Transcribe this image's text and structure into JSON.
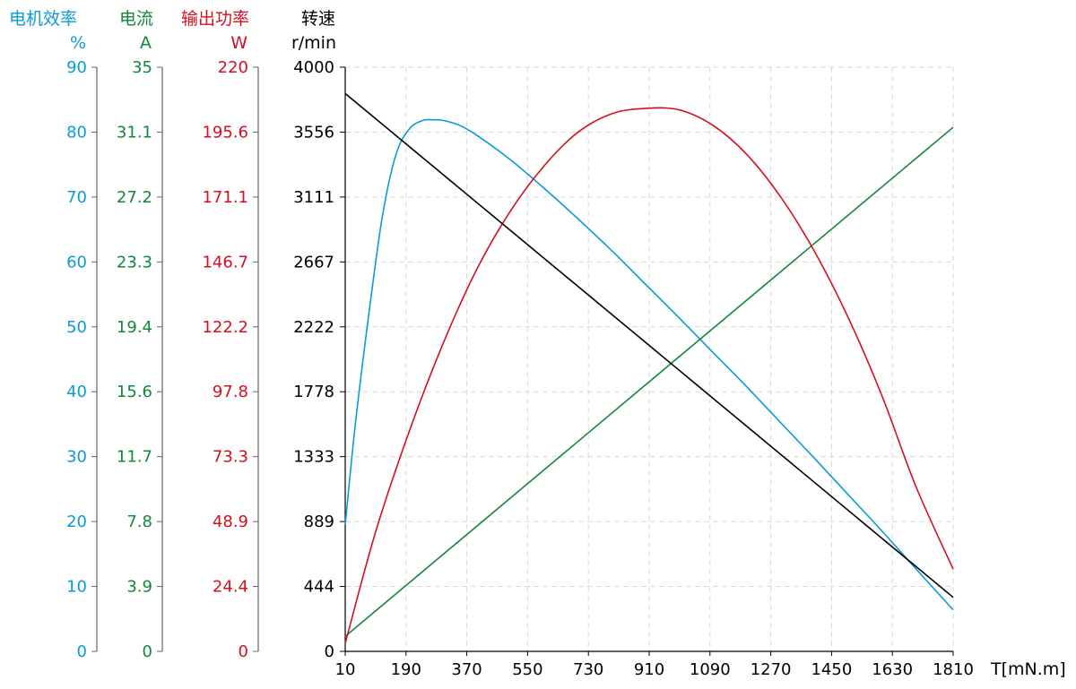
{
  "colors": {
    "efficiency": "#0a9bd6",
    "current": "#12873a",
    "power": "#d40f1f",
    "speed": "#000000",
    "grid": "#d9d9d9"
  },
  "chart_data": {
    "type": "line",
    "grid": true,
    "x_axis": {
      "label": "T[mN.m]",
      "range": [
        10,
        1810
      ],
      "ticks": [
        "10",
        "190",
        "370",
        "550",
        "730",
        "910",
        "1090",
        "1270",
        "1450",
        "1630",
        "1810"
      ]
    },
    "y_axes": [
      {
        "id": "efficiency",
        "title": "电机效率",
        "unit": "%",
        "range": [
          0,
          90
        ],
        "ticks": [
          "0",
          "10",
          "20",
          "30",
          "40",
          "50",
          "60",
          "70",
          "80",
          "90"
        ]
      },
      {
        "id": "current",
        "title": "电流",
        "unit": "A",
        "range": [
          0,
          35
        ],
        "ticks": [
          "0",
          "3.9",
          "7.8",
          "11.7",
          "15.6",
          "19.4",
          "23.3",
          "27.2",
          "31.1",
          "35"
        ]
      },
      {
        "id": "power",
        "title": "输出功率",
        "unit": "W",
        "range": [
          0,
          220
        ],
        "ticks": [
          "0",
          "24.4",
          "48.9",
          "73.3",
          "97.8",
          "122.2",
          "146.7",
          "171.1",
          "195.6",
          "220"
        ]
      },
      {
        "id": "speed",
        "title": "转速",
        "unit": "r/min",
        "range": [
          0,
          4000
        ],
        "ticks": [
          "0",
          "444",
          "889",
          "1333",
          "1778",
          "2222",
          "2667",
          "3111",
          "3556",
          "4000"
        ]
      }
    ],
    "series": [
      {
        "axis": "efficiency",
        "color": "#0a9bd6",
        "x": [
          10,
          40,
          80,
          120,
          160,
          200,
          240,
          270,
          300,
          350,
          400,
          500,
          600,
          700,
          800,
          900,
          1000,
          1100,
          1200,
          1300,
          1400,
          1500,
          1600,
          1700,
          1810
        ],
        "y": [
          19.5,
          35,
          52,
          67,
          76.5,
          80.5,
          81.8,
          81.9,
          81.8,
          81,
          79.5,
          75.7,
          71.3,
          66.6,
          61.7,
          56.5,
          51.3,
          46,
          40.7,
          35.2,
          29.7,
          24.1,
          18.5,
          12.7,
          6.4
        ]
      },
      {
        "axis": "current",
        "color": "#12873a",
        "x": [
          10,
          1810
        ],
        "y": [
          0.9,
          31.4
        ]
      },
      {
        "axis": "power",
        "color": "#d40f1f",
        "x": [
          10,
          100,
          200,
          300,
          400,
          500,
          600,
          700,
          800,
          900,
          1000,
          1100,
          1200,
          1300,
          1400,
          1500,
          1600,
          1700,
          1810
        ],
        "y": [
          3,
          45,
          83,
          116,
          144,
          166,
          183,
          195.6,
          202.5,
          204.5,
          203.9,
          198,
          187,
          171,
          150.5,
          125.5,
          96,
          62,
          31
        ]
      },
      {
        "axis": "speed",
        "color": "#000000",
        "x": [
          10,
          1810
        ],
        "y": [
          3820,
          370
        ]
      }
    ]
  }
}
